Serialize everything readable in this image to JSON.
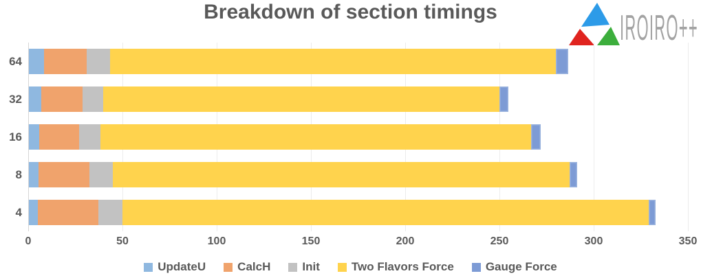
{
  "title": "Breakdown of section timings",
  "logo": {
    "text": "IROIRO++",
    "text_color": "#a3a3a3",
    "triangle_top_color": "#2d9be8",
    "triangle_left_color": "#e0241f",
    "triangle_right_color": "#3cae3c"
  },
  "colors": {
    "text": "#595959",
    "gridline": "#ececec",
    "axis_line": "#d6d6d6",
    "background": "#ffffff"
  },
  "chart_data": {
    "type": "bar",
    "orientation": "horizontal",
    "stacked": true,
    "title": "Breakdown of section timings",
    "categories": [
      "64",
      "32",
      "16",
      "8",
      "4"
    ],
    "series": [
      {
        "name": "UpdateU",
        "color": "#8fb8e0",
        "values": [
          8.0,
          6.5,
          5.5,
          5.0,
          4.7
        ]
      },
      {
        "name": "CalcH",
        "color": "#f0a36c",
        "values": [
          22.5,
          22.0,
          21.0,
          27.0,
          32.0
        ]
      },
      {
        "name": "Init",
        "color": "#c2c2c2",
        "values": [
          12.5,
          11.0,
          11.5,
          12.5,
          13.0
        ]
      },
      {
        "name": "Two Flavors Force",
        "color": "#ffd34d",
        "values": [
          236.5,
          210.0,
          228.5,
          242.5,
          279.0
        ]
      },
      {
        "name": "Gauge Force",
        "color": "#7d9bd5",
        "values": [
          6.5,
          5.0,
          5.0,
          4.0,
          3.8
        ]
      }
    ],
    "totals": [
      286.0,
      254.5,
      271.5,
      291.0,
      332.5
    ],
    "x_ticks": [
      "0",
      "50",
      "100",
      "150",
      "200",
      "250",
      "300",
      "350"
    ],
    "xlim": [
      0,
      350
    ],
    "xlabel": "",
    "ylabel": "",
    "grid": "vertical",
    "legend_position": "bottom"
  }
}
